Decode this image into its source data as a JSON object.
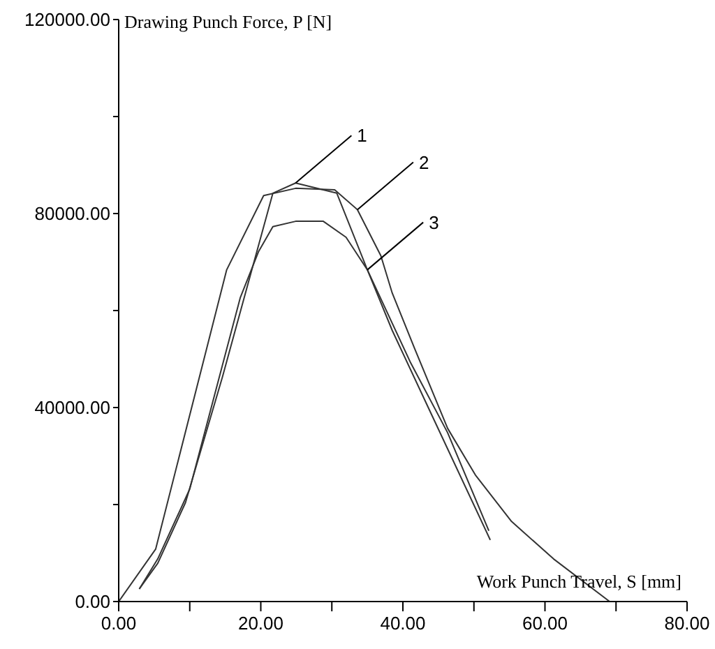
{
  "chart_data": {
    "type": "line",
    "xlabel": "Work Punch Travel, S [mm]",
    "ylabel": "Drawing Punch Force, P [N]",
    "xlim": [
      0,
      80
    ],
    "xticks": [
      {
        "value": 0,
        "label": "0.00"
      },
      {
        "value": 10,
        "label": null
      },
      {
        "value": 20,
        "label": "20.00"
      },
      {
        "value": 30,
        "label": null
      },
      {
        "value": 40,
        "label": "40.00"
      },
      {
        "value": 50,
        "label": null
      },
      {
        "value": 60,
        "label": "60.00"
      },
      {
        "value": 70,
        "label": null
      },
      {
        "value": 80,
        "label": "80.00"
      }
    ],
    "ylim": [
      0,
      120000
    ],
    "yticks": [
      {
        "value": 0,
        "label": "0.00"
      },
      {
        "value": 20000,
        "label": null
      },
      {
        "value": 40000,
        "label": "40000.00"
      },
      {
        "value": 60000,
        "label": null
      },
      {
        "value": 80000,
        "label": "80000.00"
      },
      {
        "value": 100000,
        "label": null
      },
      {
        "value": 120000,
        "label": "120000.00"
      }
    ],
    "marker": "none",
    "line_style": "solid",
    "series": [
      {
        "color": "#333333",
        "x": [
          2.9,
          5.5,
          9.4,
          14.6,
          21.7,
          24.9,
          30.7,
          35,
          41.1,
          46.3,
          52.1
        ],
        "values": [
          2600,
          7900,
          20400,
          46300,
          84200,
          86300,
          84200,
          68400,
          49200,
          34800,
          14600
        ]
      },
      {
        "color": "#333333",
        "x": [
          0,
          5.2,
          15.2,
          20.4,
          24.9,
          30.4,
          33.6,
          36.9,
          38.5,
          41.7,
          46.3,
          50.2,
          55.3,
          61.2,
          69.1
        ],
        "values": [
          0,
          10800,
          68400,
          83700,
          85200,
          84900,
          80800,
          71300,
          63600,
          52000,
          35700,
          26100,
          16500,
          8800,
          0
        ]
      },
      {
        "color": "#333333",
        "x": [
          2.9,
          5.5,
          10,
          17.1,
          19.7,
          21.7,
          24.9,
          28.8,
          32,
          35,
          38.5,
          43.7,
          52.3
        ],
        "values": [
          2600,
          8800,
          23200,
          62600,
          72200,
          77300,
          78400,
          78400,
          75100,
          68400,
          55900,
          39600,
          12700
        ]
      }
    ],
    "annotations": [
      {
        "text": "1",
        "x": 24.9,
        "y": 86300
      },
      {
        "text": "2",
        "x": 33.6,
        "y": 80800
      },
      {
        "text": "3",
        "x": 35,
        "y": 68400
      }
    ]
  }
}
